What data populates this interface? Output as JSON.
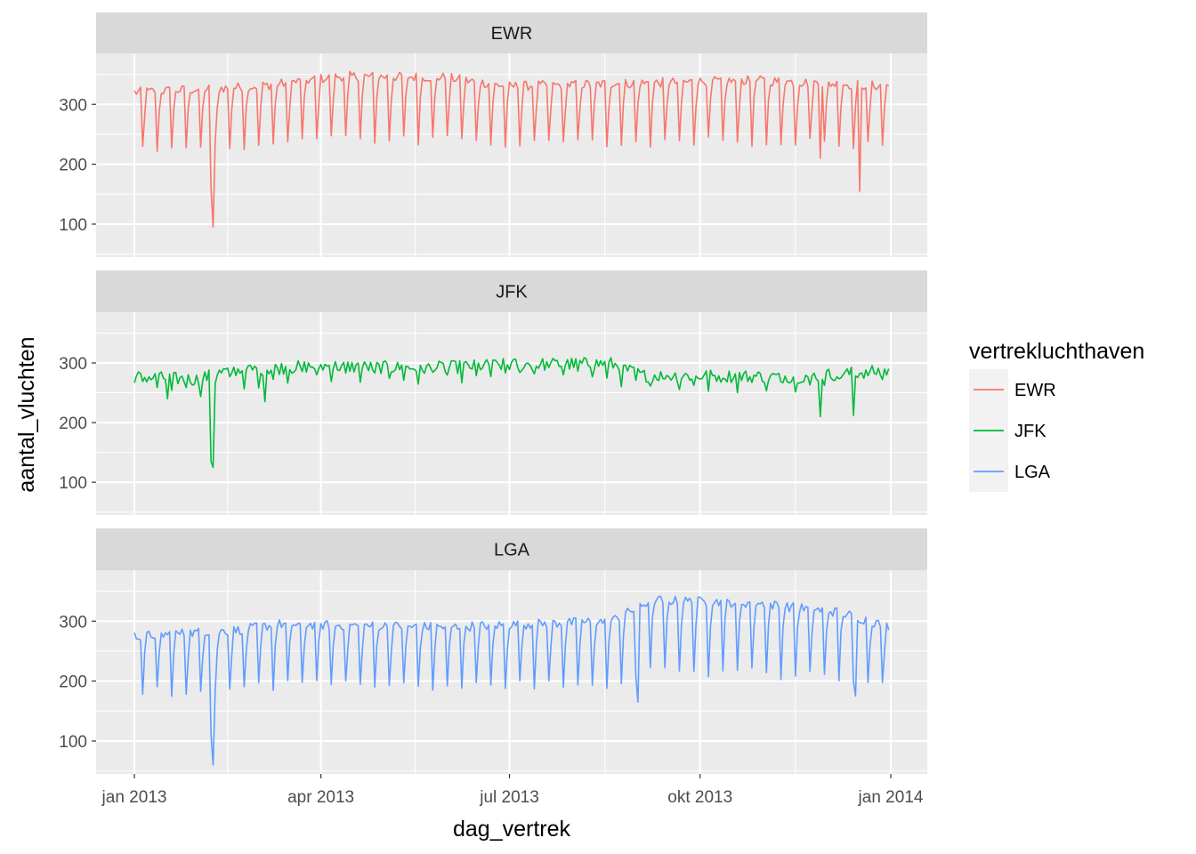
{
  "chart_data": {
    "type": "line",
    "layout": "facet-grid-rows",
    "xlabel": "dag_vertrek",
    "ylabel": "aantal_vluchten",
    "legend_title": "vertrekluchthaven",
    "legend_position": "right",
    "x_range": [
      0,
      364
    ],
    "x_ticks": [
      {
        "day": 0,
        "label": "jan 2013"
      },
      {
        "day": 90,
        "label": "apr 2013"
      },
      {
        "day": 181,
        "label": "jul 2013"
      },
      {
        "day": 273,
        "label": "okt 2013"
      },
      {
        "day": 365,
        "label": "jan 2014"
      }
    ],
    "ylim": [
      45,
      385
    ],
    "y_ticks": [
      100,
      200,
      300
    ],
    "grid": true,
    "x_unit": "days since 2013-01-01",
    "panels": [
      {
        "name": "EWR",
        "strip_label": "EWR",
        "color": "#F8766D",
        "base": 335,
        "weekend_min": 235,
        "trend": [
          [
            0,
            -15
          ],
          [
            60,
            -5
          ],
          [
            100,
            12
          ],
          [
            150,
            10
          ],
          [
            180,
            -5
          ],
          [
            240,
            0
          ],
          [
            300,
            5
          ],
          [
            365,
            -5
          ]
        ],
        "dips": [
          {
            "day": 38,
            "value": 95
          },
          {
            "day": 37,
            "value": 160
          },
          {
            "day": 350,
            "value": 155
          },
          {
            "day": 331,
            "value": 210
          }
        ]
      },
      {
        "name": "JFK",
        "strip_label": "JFK",
        "color": "#00BA38",
        "base": 287,
        "weekend_min": 262,
        "trend": [
          [
            0,
            -10
          ],
          [
            30,
            -15
          ],
          [
            45,
            0
          ],
          [
            90,
            8
          ],
          [
            140,
            4
          ],
          [
            180,
            10
          ],
          [
            230,
            12
          ],
          [
            245,
            -8
          ],
          [
            320,
            -10
          ],
          [
            365,
            0
          ]
        ],
        "dips": [
          {
            "day": 38,
            "value": 125
          },
          {
            "day": 37,
            "value": 135
          },
          {
            "day": 63,
            "value": 235
          },
          {
            "day": 331,
            "value": 210
          },
          {
            "day": 347,
            "value": 212
          },
          {
            "day": 16,
            "value": 240
          }
        ]
      },
      {
        "name": "LGA",
        "strip_label": "LGA",
        "color": "#619CFF",
        "base": 290,
        "weekend_min": 190,
        "trend": [
          [
            0,
            -15
          ],
          [
            50,
            -5
          ],
          [
            70,
            5
          ],
          [
            150,
            0
          ],
          [
            230,
            10
          ],
          [
            250,
            45
          ],
          [
            300,
            40
          ],
          [
            340,
            25
          ],
          [
            365,
            0
          ]
        ],
        "dips": [
          {
            "day": 38,
            "value": 60
          },
          {
            "day": 37,
            "value": 110
          },
          {
            "day": 243,
            "value": 165
          },
          {
            "day": 348,
            "value": 175
          }
        ]
      }
    ]
  }
}
